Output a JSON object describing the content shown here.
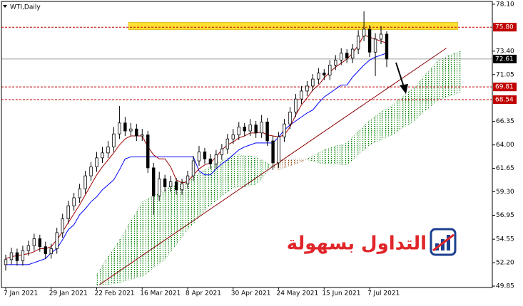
{
  "chart_data": {
    "type": "candlestick",
    "title": "WTI,Daily",
    "watermark": "التداول بسهولة",
    "categories": [
      "7 Jan 2021",
      null,
      null,
      null,
      null,
      null,
      null,
      null,
      "29 Jan 2021",
      null,
      null,
      null,
      null,
      null,
      null,
      null,
      "22 Feb 2021",
      null,
      null,
      null,
      null,
      null,
      null,
      null,
      "16 Mar 2021",
      null,
      null,
      null,
      null,
      null,
      null,
      null,
      "8 Apr 2021",
      null,
      null,
      null,
      null,
      null,
      null,
      null,
      "30 Apr 2021",
      null,
      null,
      null,
      null,
      null,
      null,
      null,
      "24 May 2021",
      null,
      null,
      null,
      null,
      null,
      null,
      null,
      "15 Jun 2021",
      null,
      null,
      null,
      null,
      null,
      null,
      null,
      "7 Jul 2021",
      null,
      null,
      null,
      null,
      null,
      null,
      null,
      null,
      null,
      null,
      null,
      null,
      null,
      null,
      null,
      null
    ],
    "open": [
      52.0,
      52.5,
      53.2,
      52.4,
      53.4,
      53.9,
      54.6,
      53.8,
      53.1,
      53.6,
      55.2,
      56.6,
      57.9,
      58.7,
      59.6,
      60.9,
      61.8,
      62.7,
      63.2,
      63.8,
      65.1,
      66.2,
      65.4,
      65.6,
      64.9,
      65.0,
      61.7,
      58.9,
      60.6,
      59.8,
      60.3,
      59.5,
      60.1,
      60.9,
      62.4,
      63.3,
      62.6,
      62.1,
      63.0,
      63.6,
      64.6,
      65.0,
      65.8,
      65.4,
      66.0,
      65.2,
      66.3,
      64.4,
      62.2,
      64.8,
      66.1,
      67.3,
      68.6,
      69.4,
      69.9,
      70.6,
      71.2,
      71.0,
      72.0,
      72.5,
      73.2,
      72.7,
      73.6,
      74.9,
      75.6,
      73.3,
      74.6,
      75.1,
      null,
      null,
      null,
      null,
      null,
      null,
      null,
      null,
      null,
      null,
      null,
      null,
      null
    ],
    "high": [
      53.0,
      53.7,
      53.6,
      53.9,
      54.4,
      55.1,
      55.0,
      54.3,
      54.1,
      55.7,
      57.1,
      58.4,
      59.2,
      60.1,
      61.4,
      62.3,
      63.3,
      63.8,
      64.4,
      65.8,
      67.9,
      66.8,
      66.2,
      66.1,
      65.6,
      65.4,
      62.2,
      61.3,
      61.0,
      60.9,
      60.7,
      60.6,
      61.4,
      62.9,
      63.9,
      63.7,
      63.1,
      63.5,
      64.1,
      65.1,
      65.6,
      66.3,
      66.2,
      66.6,
      66.4,
      67.0,
      66.7,
      64.9,
      65.3,
      66.6,
      67.8,
      69.1,
      69.9,
      70.4,
      71.1,
      71.7,
      71.6,
      72.5,
      73.0,
      73.7,
      73.6,
      74.1,
      75.5,
      77.4,
      76.0,
      75.2,
      75.9,
      75.4,
      null,
      null,
      null,
      null,
      null,
      null,
      null,
      null,
      null,
      null,
      null,
      null,
      null
    ],
    "low": [
      51.4,
      52.0,
      51.9,
      51.9,
      52.9,
      53.4,
      53.3,
      52.6,
      52.6,
      53.1,
      54.7,
      56.1,
      57.4,
      58.2,
      59.1,
      60.4,
      61.3,
      62.2,
      62.7,
      63.3,
      64.6,
      64.9,
      64.9,
      64.4,
      64.4,
      61.2,
      57.0,
      58.4,
      59.3,
      59.3,
      59.0,
      59.0,
      59.6,
      60.4,
      61.9,
      62.1,
      61.6,
      61.6,
      62.5,
      63.1,
      64.1,
      64.5,
      64.9,
      64.9,
      64.7,
      64.7,
      63.9,
      61.5,
      61.7,
      64.3,
      65.6,
      66.8,
      68.1,
      68.9,
      69.4,
      70.1,
      70.5,
      70.5,
      71.5,
      72.0,
      72.2,
      72.2,
      73.1,
      74.4,
      72.8,
      70.9,
      74.1,
      71.8,
      null,
      null,
      null,
      null,
      null,
      null,
      null,
      null,
      null,
      null,
      null,
      null,
      null
    ],
    "close": [
      52.5,
      53.2,
      52.4,
      53.4,
      53.9,
      54.6,
      53.8,
      53.1,
      53.6,
      55.2,
      56.6,
      57.9,
      58.7,
      59.6,
      60.9,
      61.8,
      62.7,
      63.2,
      63.8,
      65.1,
      66.2,
      65.4,
      65.6,
      64.9,
      65.0,
      61.7,
      58.9,
      60.6,
      59.8,
      60.3,
      59.5,
      60.1,
      60.9,
      62.4,
      63.3,
      62.6,
      62.1,
      63.0,
      63.6,
      64.6,
      65.0,
      65.8,
      65.4,
      66.0,
      65.2,
      66.3,
      64.4,
      62.2,
      64.8,
      66.1,
      67.3,
      68.6,
      69.4,
      69.9,
      70.6,
      71.2,
      71.0,
      72.0,
      72.5,
      73.2,
      72.7,
      73.6,
      74.9,
      75.6,
      73.3,
      74.6,
      75.1,
      72.61,
      null,
      null,
      null,
      null,
      null,
      null,
      null,
      null,
      null,
      null,
      null,
      null,
      null
    ],
    "up_color": "#ffffff",
    "down_color": "#000000",
    "tenkan": {
      "color": "#a00000",
      "values": [
        52.6,
        52.8,
        52.9,
        53.0,
        53.1,
        53.3,
        53.6,
        53.6,
        53.8,
        54.5,
        55.3,
        56.2,
        57.1,
        58.0,
        59.0,
        60.0,
        61.0,
        61.8,
        62.5,
        63.2,
        64.0,
        64.6,
        64.9,
        64.9,
        64.9,
        63.8,
        63.0,
        62.6,
        62.6,
        61.8,
        60.5,
        60.2,
        60.3,
        61.0,
        61.6,
        62.0,
        62.2,
        62.8,
        63.5,
        64.0,
        64.3,
        64.7,
        64.9,
        65.2,
        65.2,
        65.3,
        65.0,
        64.9,
        64.8,
        65.0,
        65.8,
        67.0,
        68.0,
        68.7,
        69.5,
        70.0,
        70.7,
        71.3,
        71.8,
        72.2,
        72.6,
        73.2,
        74.0,
        75.0,
        74.8,
        74.6,
        74.4,
        74.2,
        null,
        null,
        null,
        null,
        null,
        null,
        null,
        null,
        null,
        null,
        null,
        null,
        null
      ]
    },
    "kijun": {
      "color": "#0000ff",
      "values": [
        52.0,
        52.0,
        52.0,
        52.0,
        52.0,
        52.2,
        52.4,
        52.6,
        53.2,
        53.6,
        54.5,
        55.5,
        56.0,
        57.0,
        57.6,
        58.3,
        58.8,
        59.5,
        60.0,
        60.5,
        61.5,
        62.6,
        62.8,
        62.8,
        62.8,
        62.8,
        62.8,
        62.8,
        62.8,
        62.8,
        62.8,
        62.8,
        62.8,
        62.8,
        61.4,
        61.0,
        61.0,
        61.6,
        62.1,
        62.5,
        63.0,
        63.5,
        63.8,
        64.0,
        64.2,
        64.2,
        64.2,
        64.2,
        64.8,
        65.5,
        66.0,
        66.4,
        66.8,
        67.2,
        67.5,
        68.2,
        68.8,
        69.2,
        69.6,
        70.0,
        70.0,
        70.8,
        71.4,
        72.0,
        72.5,
        72.8,
        73.0,
        73.2,
        null,
        null,
        null,
        null,
        null,
        null,
        null,
        null,
        null,
        null,
        null,
        null,
        null
      ]
    },
    "cloud": {
      "up_color": "#008000",
      "down_color": "#8b4513",
      "span_a": [
        null,
        null,
        null,
        null,
        null,
        null,
        null,
        null,
        null,
        null,
        null,
        null,
        null,
        null,
        null,
        null,
        51.0,
        51.9,
        52.8,
        53.6,
        54.5,
        55.4,
        56.4,
        57.3,
        58.3,
        58.6,
        58.9,
        59.2,
        59.5,
        59.8,
        60.0,
        60.3,
        60.5,
        60.8,
        61.2,
        61.5,
        61.8,
        62.1,
        62.4,
        62.7,
        63.0,
        63.0,
        62.9,
        62.9,
        62.8,
        62.5,
        62.2,
        61.8,
        61.5,
        61.7,
        61.9,
        62.1,
        62.3,
        62.6,
        62.9,
        63.2,
        63.5,
        63.7,
        63.9,
        64.0,
        64.2,
        64.8,
        65.4,
        65.9,
        66.5,
        66.9,
        67.3,
        67.6,
        68.0,
        68.5,
        68.9,
        69.4,
        69.8,
        70.5,
        71.2,
        71.8,
        72.5,
        72.7,
        73.0,
        73.2,
        73.4
      ],
      "span_b": [
        null,
        null,
        null,
        null,
        null,
        null,
        null,
        null,
        null,
        null,
        null,
        null,
        null,
        null,
        null,
        null,
        49.9,
        50.0,
        50.0,
        50.1,
        50.2,
        50.4,
        50.5,
        50.7,
        50.8,
        51.2,
        51.7,
        52.1,
        52.5,
        53.3,
        54.0,
        54.8,
        55.5,
        56.1,
        56.8,
        57.4,
        58.0,
        58.4,
        58.9,
        59.3,
        59.7,
        59.8,
        59.8,
        59.9,
        60.0,
        60.6,
        61.3,
        61.9,
        62.5,
        62.5,
        62.5,
        62.6,
        62.6,
        62.5,
        62.4,
        62.2,
        62.1,
        62.1,
        62.1,
        62.0,
        62.0,
        62.5,
        63.0,
        63.5,
        64.0,
        64.3,
        64.5,
        64.8,
        65.0,
        65.4,
        65.8,
        66.1,
        66.5,
        67.0,
        67.5,
        68.0,
        68.5,
        68.7,
        68.9,
        69.1,
        69.3
      ]
    },
    "trendline": {
      "x": [
        16.5,
        77.5
      ],
      "y": [
        50.0,
        73.7
      ],
      "color": "#8b0000"
    },
    "zone": {
      "xlim": [
        21.6,
        79.5
      ],
      "ylim": [
        75.55,
        76.3
      ],
      "color": "#ffe033"
    },
    "levels": [
      {
        "value": 75.8,
        "label": "75.80"
      },
      {
        "value": 69.81,
        "label": "69.81"
      },
      {
        "value": 68.54,
        "label": "68.54"
      }
    ],
    "level_color": "#c00000",
    "last_price": 72.61,
    "ylim": [
      49.71,
      78.31
    ],
    "yticks": [
      {
        "value": 78.1,
        "label": "78.10"
      },
      {
        "value": 73.4,
        "label": "73.40"
      },
      71.05,
      66.35,
      {
        "value": 64.0,
        "label": "64.00"
      },
      61.65,
      {
        "value": 59.3,
        "label": "59.30"
      },
      56.95,
      54.55,
      {
        "value": 52.2,
        "label": "52.20"
      },
      49.85
    ],
    "grid": false
  }
}
